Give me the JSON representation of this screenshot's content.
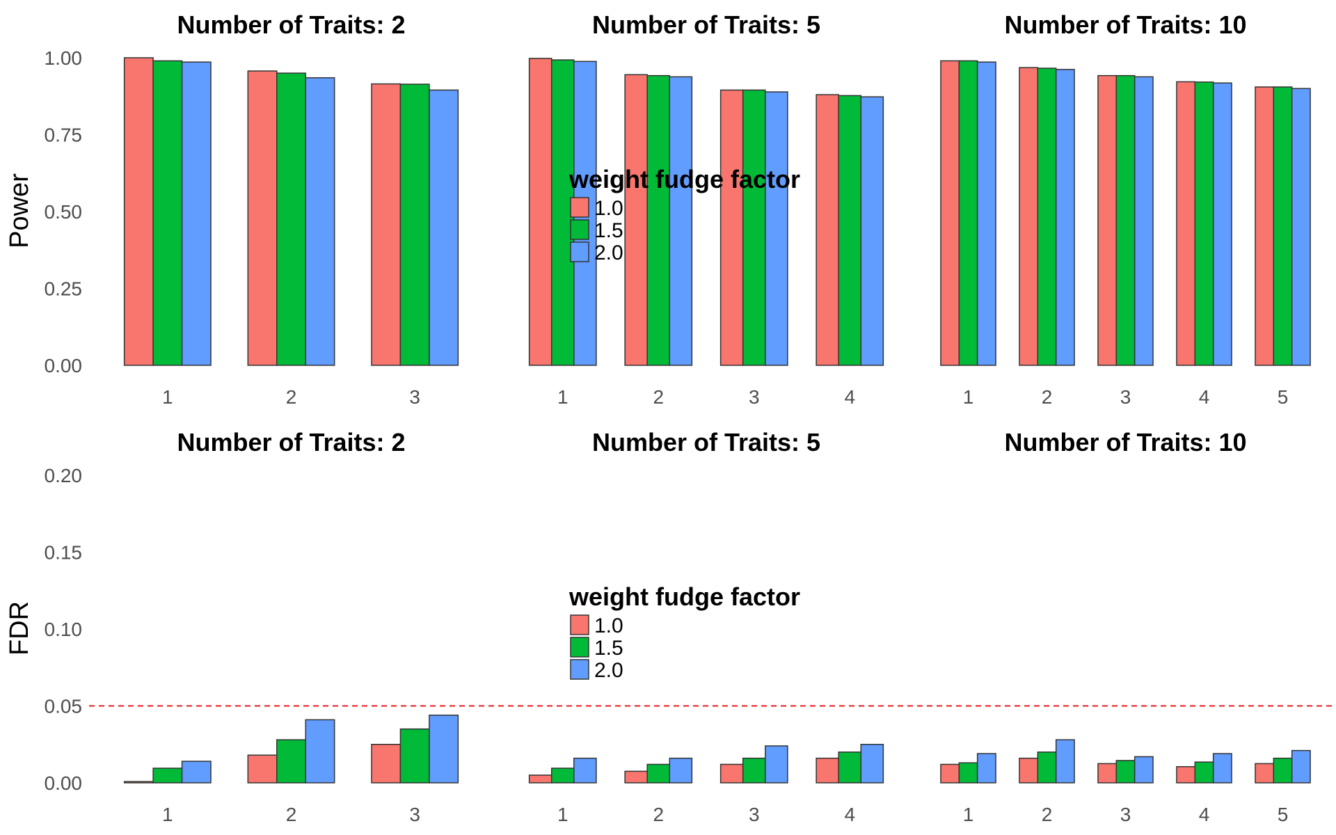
{
  "colors": {
    "series": [
      "#F8766D",
      "#00BA38",
      "#619CFF"
    ],
    "bar_outline": "#333333",
    "reference_line": "#E41A1C",
    "tick_text": "#4d4d4d"
  },
  "legend": {
    "title": "weight fudge factor",
    "entries": [
      "1.0",
      "1.5",
      "2.0"
    ]
  },
  "chart_data": [
    {
      "type": "bar",
      "row": "power",
      "ylabel": "Power",
      "ylim": [
        0,
        1
      ],
      "yticks": [
        "0.00",
        "0.25",
        "0.50",
        "0.75",
        "1.00"
      ],
      "ytick_values": [
        0,
        0.25,
        0.5,
        0.75,
        1.0
      ],
      "legend_position": "center",
      "panels": [
        {
          "title": "Number of Traits: 2",
          "categories": [
            "1",
            "2",
            "3"
          ],
          "series": [
            {
              "name": "1.0",
              "values": [
                1.0,
                0.957,
                0.915
              ]
            },
            {
              "name": "1.5",
              "values": [
                0.99,
                0.95,
                0.914
              ]
            },
            {
              "name": "2.0",
              "values": [
                0.986,
                0.935,
                0.895
              ]
            }
          ]
        },
        {
          "title": "Number of Traits: 5",
          "categories": [
            "1",
            "2",
            "3",
            "4"
          ],
          "series": [
            {
              "name": "1.0",
              "values": [
                0.998,
                0.945,
                0.895,
                0.88
              ]
            },
            {
              "name": "1.5",
              "values": [
                0.993,
                0.942,
                0.895,
                0.877
              ]
            },
            {
              "name": "2.0",
              "values": [
                0.988,
                0.938,
                0.889,
                0.873
              ]
            }
          ]
        },
        {
          "title": "Number of Traits: 10",
          "categories": [
            "1",
            "2",
            "3",
            "4",
            "5"
          ],
          "series": [
            {
              "name": "1.0",
              "values": [
                0.99,
                0.968,
                0.942,
                0.922,
                0.905
              ]
            },
            {
              "name": "1.5",
              "values": [
                0.99,
                0.966,
                0.942,
                0.921,
                0.905
              ]
            },
            {
              "name": "2.0",
              "values": [
                0.986,
                0.962,
                0.938,
                0.918,
                0.9
              ]
            }
          ]
        }
      ]
    },
    {
      "type": "bar",
      "row": "fdr",
      "ylabel": "FDR",
      "ylim": [
        0,
        0.2
      ],
      "yticks": [
        "0.00",
        "0.05",
        "0.10",
        "0.15",
        "0.20"
      ],
      "ytick_values": [
        0,
        0.05,
        0.1,
        0.15,
        0.2
      ],
      "reference_line": 0.05,
      "legend_position": "center",
      "panels": [
        {
          "title": "Number of Traits: 2",
          "categories": [
            "1",
            "2",
            "3"
          ],
          "series": [
            {
              "name": "1.0",
              "values": [
                0.0008,
                0.018,
                0.025
              ]
            },
            {
              "name": "1.5",
              "values": [
                0.0095,
                0.028,
                0.035
              ]
            },
            {
              "name": "2.0",
              "values": [
                0.014,
                0.041,
                0.044
              ]
            }
          ]
        },
        {
          "title": "Number of Traits: 5",
          "categories": [
            "1",
            "2",
            "3",
            "4"
          ],
          "series": [
            {
              "name": "1.0",
              "values": [
                0.005,
                0.0075,
                0.012,
                0.016
              ]
            },
            {
              "name": "1.5",
              "values": [
                0.0095,
                0.012,
                0.016,
                0.02
              ]
            },
            {
              "name": "2.0",
              "values": [
                0.016,
                0.016,
                0.024,
                0.025
              ]
            }
          ]
        },
        {
          "title": "Number of Traits: 10",
          "categories": [
            "1",
            "2",
            "3",
            "4",
            "5"
          ],
          "series": [
            {
              "name": "1.0",
              "values": [
                0.012,
                0.016,
                0.0125,
                0.0105,
                0.0125
              ]
            },
            {
              "name": "1.5",
              "values": [
                0.013,
                0.02,
                0.0145,
                0.0135,
                0.016
              ]
            },
            {
              "name": "2.0",
              "values": [
                0.019,
                0.028,
                0.017,
                0.019,
                0.021
              ]
            }
          ]
        }
      ]
    }
  ]
}
